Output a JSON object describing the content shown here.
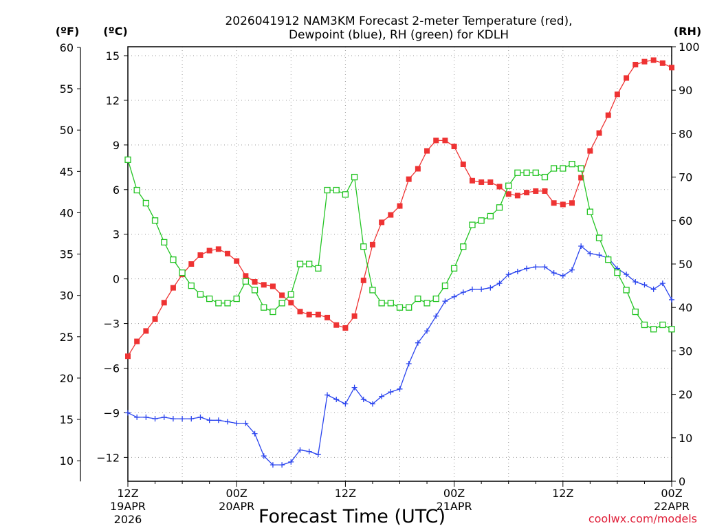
{
  "chart_data": {
    "type": "line",
    "title_line1": "2026041912 NAM3KM Forecast 2-meter Temperature (red),",
    "title_line2": "Dewpoint (blue), RH (green) for KDLH",
    "xlabel": "Forecast Time (UTC)",
    "credit": "coolwx.com/models",
    "units": {
      "fahrenheit": "(ºF)",
      "celsius": "(ºC)",
      "rh": "(RH)"
    },
    "x_hours_range": [
      0,
      60
    ],
    "x_ticks": [
      {
        "hour": 0,
        "line1": "12Z",
        "line2": "19APR",
        "line3": "2026"
      },
      {
        "hour": 12,
        "line1": "00Z",
        "line2": "20APR",
        "line3": ""
      },
      {
        "hour": 24,
        "line1": "12Z",
        "line2": "",
        "line3": ""
      },
      {
        "hour": 36,
        "line1": "00Z",
        "line2": "21APR",
        "line3": ""
      },
      {
        "hour": 48,
        "line1": "12Z",
        "line2": "",
        "line3": ""
      },
      {
        "hour": 60,
        "line1": "00Z",
        "line2": "22APR",
        "line3": ""
      }
    ],
    "ylim_celsius": [
      -13.6,
      15.6
    ],
    "y_ticks_celsius": [
      "15",
      "12",
      "9",
      "6",
      "3",
      "0",
      "−3",
      "−6",
      "−9",
      "−12"
    ],
    "y_ticks_fahrenheit": [
      "60",
      "55",
      "50",
      "45",
      "40",
      "35",
      "30",
      "25",
      "20",
      "15",
      "10"
    ],
    "ylim_rh": [
      0,
      100
    ],
    "y_ticks_rh": [
      "100",
      "90",
      "80",
      "70",
      "60",
      "50",
      "40",
      "30",
      "20",
      "10",
      "0"
    ],
    "series": [
      {
        "name": "2-meter Temperature (°C)",
        "color": "#ee3333",
        "marker": "filled-square",
        "axis": "celsius",
        "values": [
          -5.2,
          -4.2,
          -3.5,
          -2.7,
          -1.6,
          -0.6,
          0.3,
          1.0,
          1.6,
          1.9,
          2.0,
          1.7,
          1.2,
          0.2,
          -0.2,
          -0.4,
          -0.5,
          -1.1,
          -1.6,
          -2.2,
          -2.4,
          -2.4,
          -2.6,
          -3.1,
          -3.3,
          -2.5,
          -0.1,
          2.3,
          3.8,
          4.3,
          4.9,
          6.7,
          7.4,
          8.6,
          9.3,
          9.3,
          8.9,
          7.7,
          6.6,
          6.5,
          6.5,
          6.2,
          5.7,
          5.6,
          5.8,
          5.9,
          5.9,
          5.1,
          5.0,
          5.1,
          6.8,
          8.6,
          9.8,
          11.0,
          12.4,
          13.5,
          14.4,
          14.6,
          14.7,
          14.5,
          14.2
        ]
      },
      {
        "name": "Dewpoint (°C)",
        "color": "#2a44ee",
        "marker": "plus",
        "axis": "celsius",
        "values": [
          -9.0,
          -9.3,
          -9.3,
          -9.4,
          -9.3,
          -9.4,
          -9.4,
          -9.4,
          -9.3,
          -9.5,
          -9.5,
          -9.6,
          -9.7,
          -9.7,
          -10.4,
          -11.9,
          -12.5,
          -12.5,
          -12.3,
          -11.5,
          -11.6,
          -11.8,
          -7.8,
          -8.1,
          -8.4,
          -7.3,
          -8.1,
          -8.4,
          -7.9,
          -7.6,
          -7.4,
          -5.7,
          -4.3,
          -3.5,
          -2.5,
          -1.5,
          -1.2,
          -0.9,
          -0.7,
          -0.7,
          -0.6,
          -0.3,
          0.3,
          0.5,
          0.7,
          0.8,
          0.8,
          0.4,
          0.2,
          0.6,
          2.2,
          1.7,
          1.6,
          1.4,
          0.7,
          0.3,
          -0.2,
          -0.4,
          -0.7,
          -0.3,
          -1.4
        ]
      },
      {
        "name": "RH (%)",
        "color": "#22c422",
        "marker": "open-square",
        "axis": "rh",
        "values": [
          74,
          67,
          64,
          60,
          55,
          51,
          48,
          45,
          43,
          42,
          41,
          41,
          42,
          46,
          44,
          40,
          39,
          41,
          43,
          50,
          50,
          49,
          67,
          67,
          66,
          70,
          54,
          44,
          41,
          41,
          40,
          40,
          42,
          41,
          42,
          45,
          49,
          54,
          59,
          60,
          61,
          63,
          68,
          71,
          71,
          71,
          70,
          72,
          72,
          73,
          72,
          62,
          56,
          51,
          48,
          44,
          39,
          36,
          35,
          36,
          35
        ]
      }
    ]
  }
}
